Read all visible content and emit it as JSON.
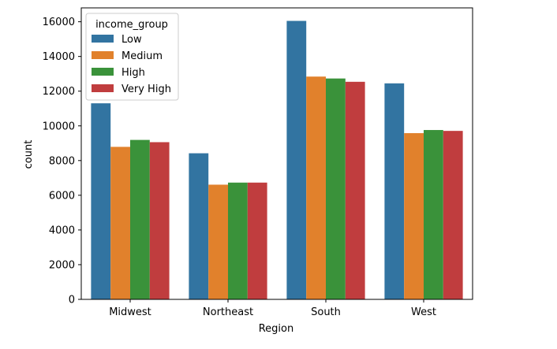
{
  "chart_data": {
    "type": "bar",
    "title": "",
    "xlabel": "Region",
    "ylabel": "count",
    "categories": [
      "Midwest",
      "Northeast",
      "South",
      "West"
    ],
    "ylim": [
      0,
      16800
    ],
    "yticks": [
      0,
      2000,
      4000,
      6000,
      8000,
      10000,
      12000,
      14000,
      16000
    ],
    "grid": false,
    "legend": {
      "title": "income_group",
      "placement": "top-left"
    },
    "series": [
      {
        "name": "Low",
        "color": "#3274a1",
        "values": [
          11300,
          8420,
          16050,
          12450
        ]
      },
      {
        "name": "Medium",
        "color": "#e1812c",
        "values": [
          8790,
          6610,
          12840,
          9580
        ]
      },
      {
        "name": "High",
        "color": "#3a923a",
        "values": [
          9190,
          6730,
          12730,
          9760
        ]
      },
      {
        "name": "Very High",
        "color": "#c03d3e",
        "values": [
          9060,
          6730,
          12540,
          9710
        ]
      }
    ]
  }
}
